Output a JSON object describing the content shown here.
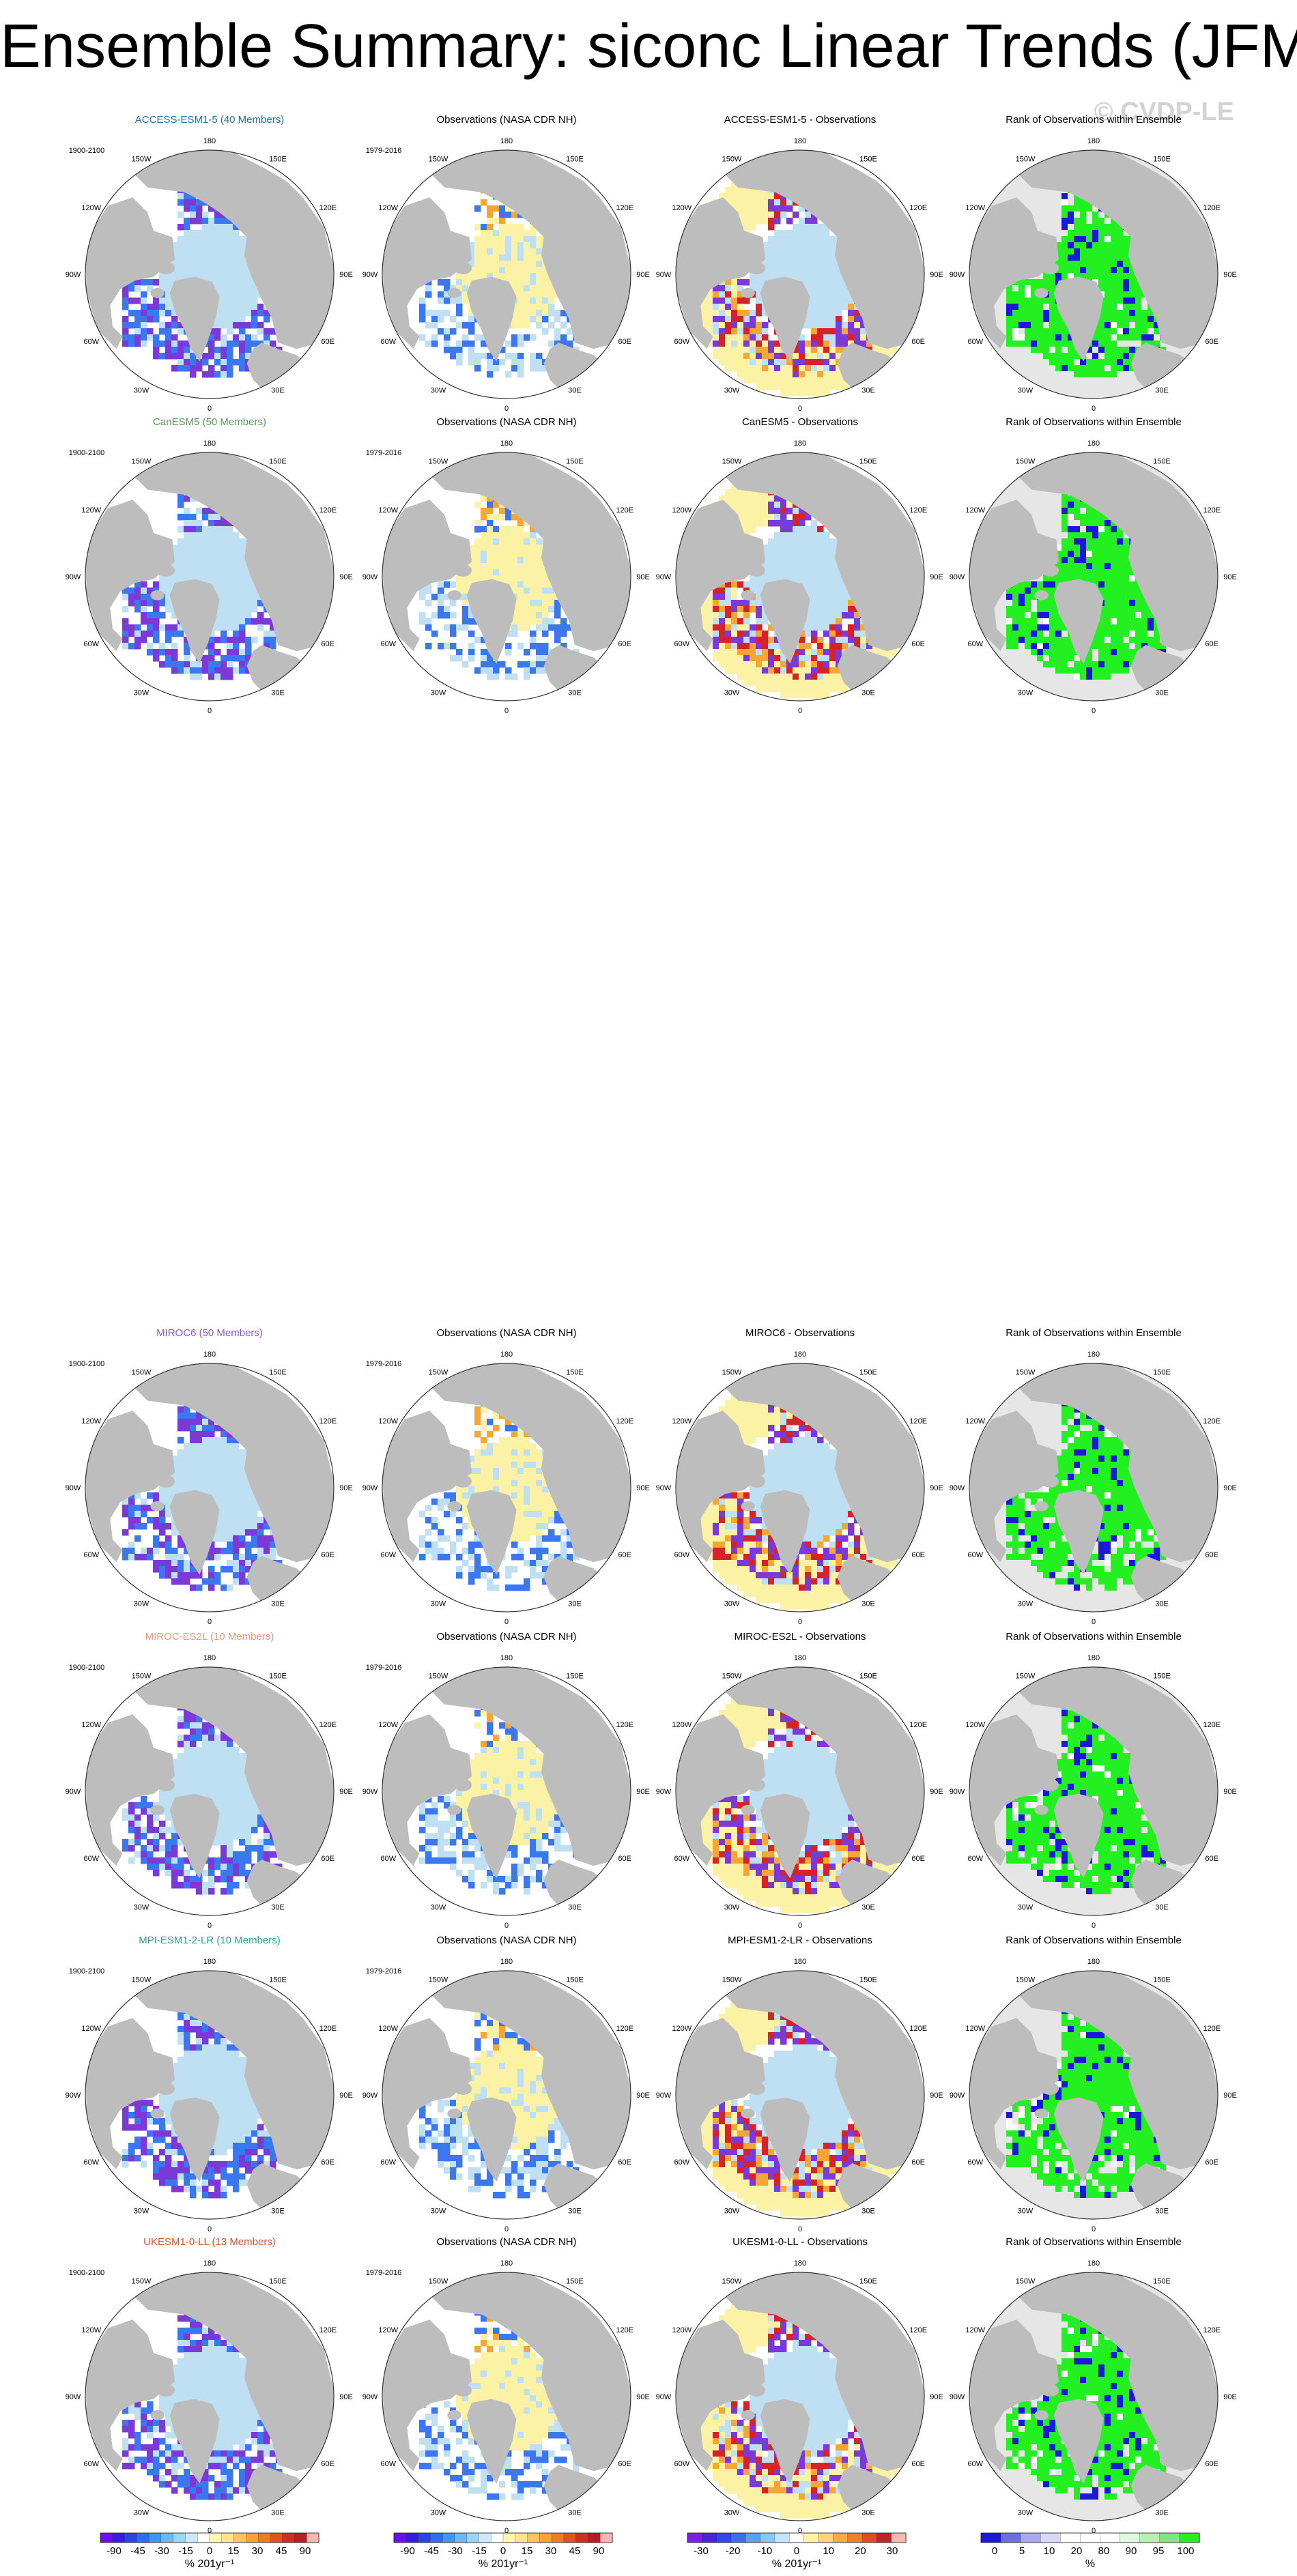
{
  "title": "Ensemble Summary: siconc Linear Trends (JFM)",
  "watermark": "© CVDP-LE",
  "colors": {
    "land": "#bdbdbd",
    "ice_light": "#bfe0f2",
    "ice_blue": "#3b78f0",
    "ice_deep": "#7b3ad8",
    "obs_yellow": "#fbf2a6",
    "obs_orange": "#f4a833",
    "obs_red": "#d6232a",
    "rank_bg": "#e6e6e6",
    "rank_green": "#22f020",
    "rank_blue": "#1a19d8",
    "title_access": "#1f6fa8",
    "title_canesm": "#5a9a5a",
    "title_miroc6": "#8f55d6",
    "title_miroces2l": "#e89a72",
    "title_mpi": "#2a9f9a",
    "title_ukesm": "#d8542a"
  },
  "longitude_labels": [
    "180",
    "150E",
    "120E",
    "90E",
    "60E",
    "30E",
    "0",
    "30W",
    "60W",
    "90W",
    "120W",
    "150W"
  ],
  "column_titles": {
    "obs": "Observations (NASA CDR NH)",
    "rank": "Rank of Observations within Ensemble"
  },
  "periods": {
    "model": "1900-2100",
    "obs": "1979-2016"
  },
  "chart_data": {
    "type": "heatmap",
    "variable": "siconc",
    "season": "JFM",
    "rows": [
      {
        "model_title": "ACCESS-ESM1-5 (40 Members)",
        "diff_title": "ACCESS-ESM1-5 - Observations",
        "color_key": "title_access"
      },
      {
        "model_title": "CanESM5 (50 Members)",
        "diff_title": "CanESM5 - Observations",
        "color_key": "title_canesm"
      },
      {
        "model_title": "MIROC6 (50 Members)",
        "diff_title": "MIROC6 - Observations",
        "color_key": "title_miroc6"
      },
      {
        "model_title": "MIROC-ES2L (10 Members)",
        "diff_title": "MIROC-ES2L - Observations",
        "color_key": "title_miroces2l"
      },
      {
        "model_title": "MPI-ESM1-2-LR (10 Members)",
        "diff_title": "MPI-ESM1-2-LR - Observations",
        "color_key": "title_mpi"
      },
      {
        "model_title": "UKESM1-0-LL (13 Members)",
        "diff_title": "UKESM1-0-LL - Observations",
        "color_key": "title_ukesm"
      }
    ],
    "colorbars": [
      {
        "name": "trend",
        "ticks": [
          "-90",
          "-45",
          "-30",
          "-15",
          "0",
          "15",
          "30",
          "45",
          "90"
        ],
        "label": "% 201yr⁻¹",
        "colors": [
          "#6a0ff0",
          "#3a1ce0",
          "#2a44e8",
          "#2f6df0",
          "#3f95f2",
          "#6ab8f4",
          "#9fd3f6",
          "#cfe9fb",
          "#ffffff",
          "#fff6b0",
          "#fde38a",
          "#fcc55a",
          "#f9a332",
          "#f07c22",
          "#e2531f",
          "#cc2f25",
          "#b51f28",
          "#f6b7b5"
        ]
      },
      {
        "name": "trend-obs",
        "ticks": [
          "-90",
          "-45",
          "-30",
          "-15",
          "0",
          "15",
          "30",
          "45",
          "90"
        ],
        "label": "% 201yr⁻¹",
        "colors": [
          "#6a0ff0",
          "#3a1ce0",
          "#2a44e8",
          "#2f6df0",
          "#3f95f2",
          "#6ab8f4",
          "#9fd3f6",
          "#cfe9fb",
          "#ffffff",
          "#fff6b0",
          "#fde38a",
          "#fcc55a",
          "#f9a332",
          "#f07c22",
          "#e2531f",
          "#cc2f25",
          "#b51f28",
          "#f6b7b5"
        ]
      },
      {
        "name": "difference",
        "ticks": [
          "-30",
          "-20",
          "-10",
          "0",
          "10",
          "20",
          "30"
        ],
        "label": "% 201yr⁻¹",
        "colors": [
          "#7a20e6",
          "#4b25d6",
          "#3347e6",
          "#3c6ff0",
          "#59a0f2",
          "#8cc6f5",
          "#c7e5fa",
          "#ffffff",
          "#fff1a8",
          "#fdd578",
          "#f9ad42",
          "#f07f25",
          "#de4d22",
          "#c22327",
          "#f6b7b5"
        ]
      },
      {
        "name": "rank",
        "ticks": [
          "0",
          "5",
          "10",
          "20",
          "80",
          "90",
          "95",
          "100"
        ],
        "label": "%",
        "colors": [
          "#1a19d8",
          "#6e6ee0",
          "#a9a9ea",
          "#d9d9f4",
          "#ffffff",
          "#ffffff",
          "#ffffff",
          "#e2f7e0",
          "#b9f0b4",
          "#7fe87a",
          "#22f020"
        ]
      }
    ]
  }
}
